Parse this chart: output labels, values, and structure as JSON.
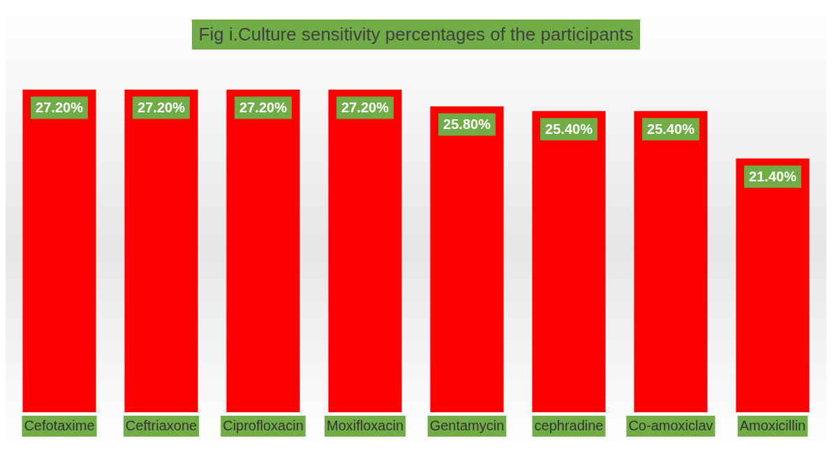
{
  "chart_data": {
    "type": "bar",
    "title": "Fig i.Culture sensitivity percentages  of the participants",
    "categories": [
      "Cefotaxime",
      "Ceftriaxone",
      "Ciprofloxacin",
      "Moxifloxacin",
      "Gentamycin",
      "cephradine",
      "Co-amoxiclav",
      "Amoxicillin"
    ],
    "values": [
      27.2,
      27.2,
      27.2,
      27.2,
      25.8,
      25.4,
      25.4,
      21.4
    ],
    "value_labels": [
      "27.20%",
      "27.20%",
      "27.20%",
      "27.20%",
      "25.80%",
      "25.40%",
      "25.40%",
      "21.40%"
    ],
    "color": "#ff0000",
    "grid": false,
    "legend": false
  }
}
